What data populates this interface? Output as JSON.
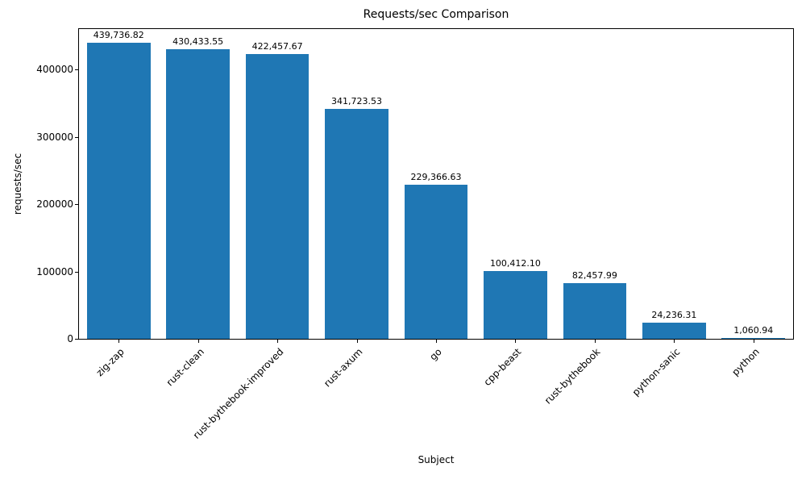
{
  "chart_data": {
    "type": "bar",
    "title": "Requests/sec Comparison",
    "xlabel": "Subject",
    "ylabel": "requests/sec",
    "categories": [
      "zig-zap",
      "rust-clean",
      "rust-bythebook-improved",
      "rust-axum",
      "go",
      "cpp-beast",
      "rust-bythebook",
      "python-sanic",
      "python"
    ],
    "values": [
      439736.82,
      430433.55,
      422457.67,
      341723.53,
      229366.63,
      100412.1,
      82457.99,
      24236.31,
      1060.94
    ],
    "value_labels": [
      "439,736.82",
      "430,433.55",
      "422,457.67",
      "341,723.53",
      "229,366.63",
      "100,412.10",
      "82,457.99",
      "24,236.31",
      "1,060.94"
    ],
    "yticks": [
      0,
      100000,
      200000,
      300000,
      400000
    ],
    "ylim": [
      0,
      460000
    ],
    "bar_color": "#1f77b4",
    "grid": false,
    "legend": null,
    "x_tick_rotation_deg": 45
  }
}
